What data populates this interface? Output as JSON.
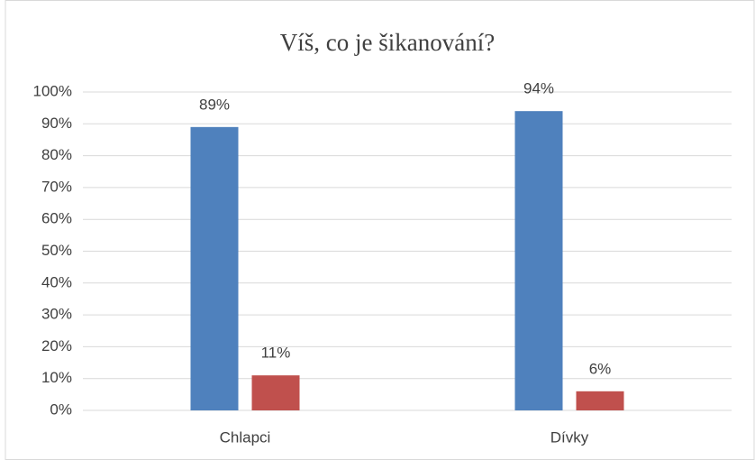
{
  "chart_data": {
    "type": "bar",
    "title": "Víš, co je šikanování?",
    "categories": [
      "Chlapci",
      "Dívky"
    ],
    "series": [
      {
        "color": "#4f81bd",
        "values": [
          89,
          94
        ],
        "value_labels": [
          "89%",
          "94%"
        ]
      },
      {
        "color": "#c0504d",
        "values": [
          11,
          6
        ],
        "value_labels": [
          "11%",
          "6%"
        ]
      }
    ],
    "ylim": [
      0,
      100
    ],
    "yticks": [
      {
        "value": 0,
        "label": "0%"
      },
      {
        "value": 10,
        "label": "10%"
      },
      {
        "value": 20,
        "label": "20%"
      },
      {
        "value": 30,
        "label": "30%"
      },
      {
        "value": 40,
        "label": "40%"
      },
      {
        "value": 50,
        "label": "50%"
      },
      {
        "value": 60,
        "label": "60%"
      },
      {
        "value": 70,
        "label": "70%"
      },
      {
        "value": 80,
        "label": "80%"
      },
      {
        "value": 90,
        "label": "90%"
      },
      {
        "value": 100,
        "label": "100%"
      }
    ],
    "grid": true
  }
}
